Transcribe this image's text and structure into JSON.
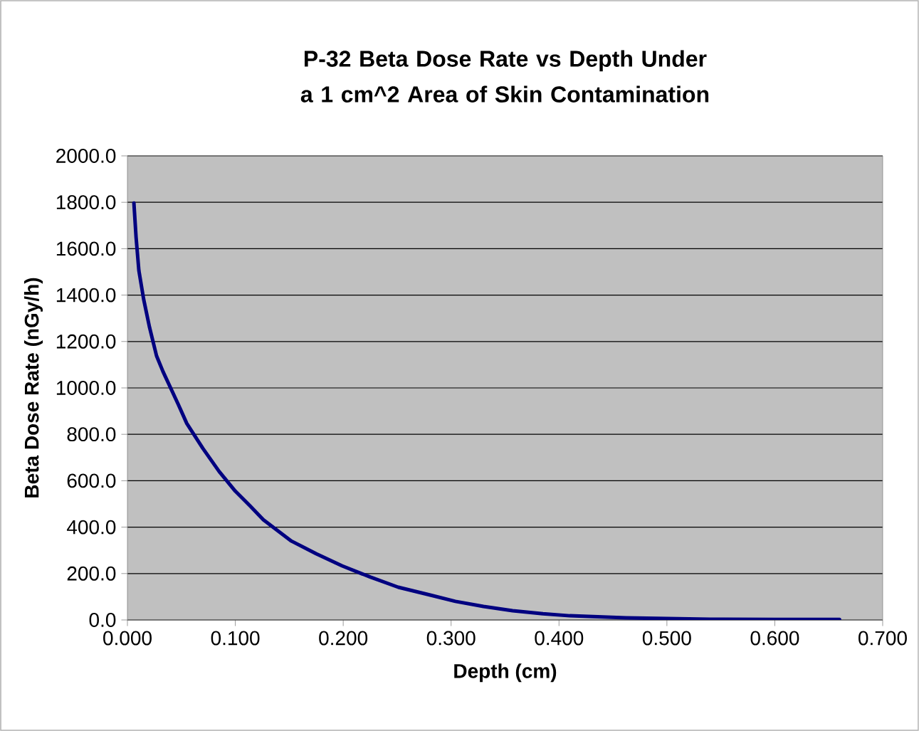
{
  "chart_data": {
    "type": "line",
    "title": "P-32 Beta Dose Rate vs Depth Under a 1 cm^2 Area of Skin Contamination",
    "xlabel": "Depth (cm)",
    "ylabel": "Beta Dose Rate (nGy/h)",
    "x": [
      0.006,
      0.008,
      0.0106,
      0.015,
      0.0205,
      0.027,
      0.033,
      0.04,
      0.047,
      0.055,
      0.07,
      0.085,
      0.1,
      0.114,
      0.126,
      0.152,
      0.175,
      0.199,
      0.225,
      0.251,
      0.28,
      0.304,
      0.33,
      0.357,
      0.385,
      0.41,
      0.462,
      0.54,
      0.6,
      0.66
    ],
    "series": [
      {
        "color": "#000080",
        "values": [
          1797,
          1650,
          1506,
          1383,
          1261,
          1138,
          1070,
          1000,
          930,
          847,
          739,
          640,
          555,
          490,
          432,
          340,
          285,
          233,
          185,
          141,
          108,
          80,
          58,
          40,
          27,
          18,
          9,
          3,
          2,
          2
        ]
      }
    ],
    "xlim": [
      0,
      0.7
    ],
    "ylim": [
      0,
      2000
    ],
    "xticks": [
      {
        "value": 0,
        "label": "0.000"
      },
      {
        "value": 0.1,
        "label": "0.100"
      },
      {
        "value": 0.2,
        "label": "0.200"
      },
      {
        "value": 0.3,
        "label": "0.300"
      },
      {
        "value": 0.4,
        "label": "0.400"
      },
      {
        "value": 0.5,
        "label": "0.500"
      },
      {
        "value": 0.6,
        "label": "0.600"
      },
      {
        "value": 0.7,
        "label": "0.700"
      }
    ],
    "yticks": [
      {
        "value": 0,
        "label": "0.0"
      },
      {
        "value": 200,
        "label": "200.0"
      },
      {
        "value": 400,
        "label": "400.0"
      },
      {
        "value": 600,
        "label": "600.0"
      },
      {
        "value": 800,
        "label": "800.0"
      },
      {
        "value": 1000,
        "label": "1000.0"
      },
      {
        "value": 1200,
        "label": "1200.0"
      },
      {
        "value": 1400,
        "label": "1400.0"
      },
      {
        "value": 1600,
        "label": "1600.0"
      },
      {
        "value": 1800,
        "label": "1800.0"
      },
      {
        "value": 2000,
        "label": "2000.0"
      }
    ],
    "grid": "y",
    "marker": "none",
    "line_style": "solid"
  }
}
